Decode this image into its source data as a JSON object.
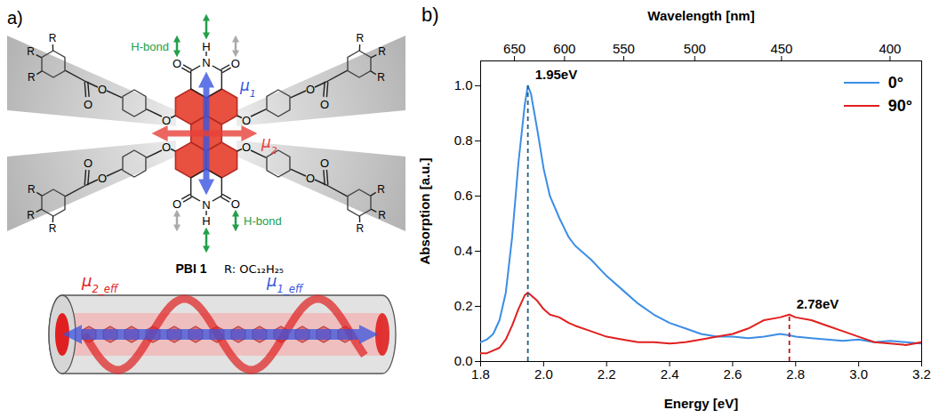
{
  "diagram": {
    "panel_label": "a)",
    "compound_label": "PBI 1",
    "substituent_label": "R: OC₁₂H₂₅",
    "atom_labels": {
      "oxygen": "O",
      "nitrogen": "N",
      "hydrogen": "H",
      "substituent": "R"
    },
    "h_bond_label": "H-bond",
    "dipoles": {
      "mu1": {
        "symbol": "μ",
        "subscript": "1",
        "color": "#3a55e0"
      },
      "mu2": {
        "symbol": "μ",
        "subscript": "2",
        "color": "#e8403a"
      },
      "mu1_eff": {
        "symbol": "μ",
        "subscript": "1_eff",
        "color": "#3a55e0"
      },
      "mu2_eff": {
        "symbol": "μ",
        "subscript": "2_eff",
        "color": "#e02020"
      }
    }
  },
  "chart_data": {
    "type": "line",
    "panel_label": "b)",
    "x_label": "Energy [eV]",
    "y_label": "Absorption [a.u.]",
    "x2_label": "Wavelength [nm]",
    "x": [
      1.8,
      1.82,
      1.84,
      1.86,
      1.88,
      1.9,
      1.92,
      1.94,
      1.95,
      1.96,
      1.98,
      2.0,
      2.02,
      2.05,
      2.08,
      2.1,
      2.15,
      2.2,
      2.25,
      2.3,
      2.35,
      2.4,
      2.45,
      2.5,
      2.55,
      2.6,
      2.65,
      2.7,
      2.75,
      2.78,
      2.8,
      2.85,
      2.9,
      2.95,
      3.0,
      3.05,
      3.1,
      3.15,
      3.2
    ],
    "series": [
      {
        "name": "0°",
        "color": "#3b8ee6",
        "values": [
          0.07,
          0.08,
          0.1,
          0.15,
          0.25,
          0.45,
          0.72,
          0.93,
          1.0,
          0.97,
          0.84,
          0.7,
          0.6,
          0.52,
          0.45,
          0.42,
          0.37,
          0.31,
          0.26,
          0.21,
          0.17,
          0.14,
          0.12,
          0.1,
          0.09,
          0.09,
          0.085,
          0.09,
          0.1,
          0.095,
          0.09,
          0.085,
          0.08,
          0.075,
          0.08,
          0.07,
          0.075,
          0.07,
          0.065
        ]
      },
      {
        "name": "90°",
        "color": "#e0201f",
        "values": [
          0.03,
          0.03,
          0.04,
          0.05,
          0.08,
          0.13,
          0.19,
          0.24,
          0.25,
          0.24,
          0.22,
          0.19,
          0.17,
          0.16,
          0.14,
          0.13,
          0.11,
          0.09,
          0.08,
          0.07,
          0.07,
          0.065,
          0.07,
          0.08,
          0.09,
          0.1,
          0.12,
          0.15,
          0.16,
          0.17,
          0.16,
          0.15,
          0.13,
          0.11,
          0.09,
          0.07,
          0.065,
          0.06,
          0.07
        ]
      }
    ],
    "xlim": [
      1.8,
      3.2
    ],
    "xticks": [
      1.8,
      {
        "value": 2,
        "label": "2.0"
      },
      2.2,
      2.4,
      2.6,
      2.8,
      {
        "value": 3,
        "label": "3.0"
      },
      3.2
    ],
    "x2ticks": [
      {
        "value": 1.9074,
        "label": "650"
      },
      {
        "value": 2.0664,
        "label": "600"
      },
      {
        "value": 2.2543,
        "label": "550"
      },
      {
        "value": 2.4797,
        "label": "500"
      },
      {
        "value": 2.7552,
        "label": "450"
      },
      {
        "value": 3.0996,
        "label": "400"
      }
    ],
    "ylim": [
      0,
      1.09
    ],
    "yticks": [
      {
        "value": 0,
        "label": "0.0"
      },
      0.2,
      0.4,
      0.6,
      0.8,
      {
        "value": 1,
        "label": "1.0"
      }
    ],
    "grid": false,
    "legend": "upper right",
    "annotations": [
      {
        "text": "1.95eV",
        "x": 1.95,
        "y": 1.0,
        "color": "#1f5f86",
        "line_style": "dashed"
      },
      {
        "text": "2.78eV",
        "x": 2.78,
        "y": 0.17,
        "color": "#c0141c",
        "line_style": "dashed"
      }
    ]
  }
}
